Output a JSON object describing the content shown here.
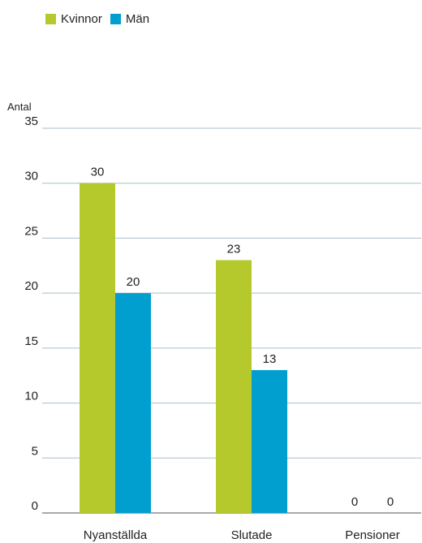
{
  "chart_data": {
    "type": "bar",
    "title": "",
    "xlabel": "",
    "ylabel": "Antal",
    "ylim": [
      0,
      35
    ],
    "yticks": [
      0,
      5,
      10,
      15,
      20,
      25,
      30,
      35
    ],
    "categories": [
      "Nyanställda",
      "Slutade",
      "Pensioner"
    ],
    "series": [
      {
        "name": "Kvinnor",
        "color": "#b5c92c",
        "values": [
          30,
          23,
          0
        ]
      },
      {
        "name": "Män",
        "color": "#009fd0",
        "values": [
          20,
          13,
          0
        ]
      }
    ],
    "data_labels": [
      [
        "30",
        "23",
        "0"
      ],
      [
        "20",
        "13",
        "0"
      ]
    ],
    "grid": true,
    "gridline_color": "#a9bfcb",
    "legend_position": "top-left"
  }
}
